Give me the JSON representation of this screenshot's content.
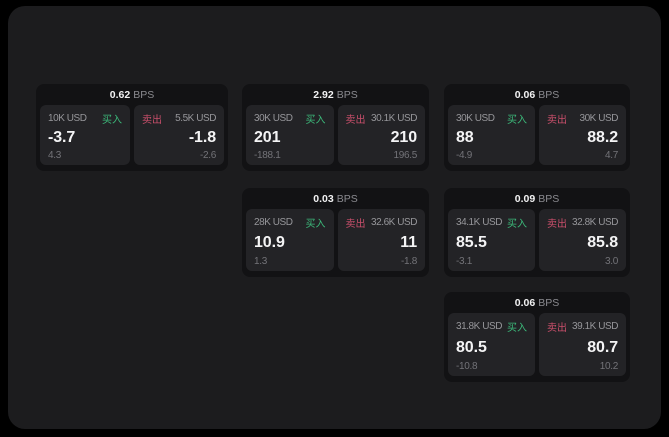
{
  "colors": {
    "buy_green": "#3cb97a",
    "sell_red": "#c94f6b"
  },
  "cards": [
    {
      "bps_value": "0.62",
      "bps_unit": "BPS",
      "buy": {
        "notional": "10K USD",
        "side_label": "买入",
        "price": "-3.7",
        "delta": "4.3"
      },
      "sell": {
        "side_label": "卖出",
        "notional": "5.5K USD",
        "price": "-1.8",
        "delta": "-2.6"
      }
    },
    {
      "bps_value": "2.92",
      "bps_unit": "BPS",
      "buy": {
        "notional": "30K USD",
        "side_label": "买入",
        "price": "201",
        "delta": "-188.1"
      },
      "sell": {
        "side_label": "卖出",
        "notional": "30.1K USD",
        "price": "210",
        "delta": "196.5"
      }
    },
    {
      "bps_value": "0.06",
      "bps_unit": "BPS",
      "buy": {
        "notional": "30K USD",
        "side_label": "买入",
        "price": "88",
        "delta": "-4.9"
      },
      "sell": {
        "side_label": "卖出",
        "notional": "30K USD",
        "price": "88.2",
        "delta": "4.7"
      }
    },
    {
      "bps_value": "0.03",
      "bps_unit": "BPS",
      "buy": {
        "notional": "28K USD",
        "side_label": "买入",
        "price": "10.9",
        "delta": "1.3"
      },
      "sell": {
        "side_label": "卖出",
        "notional": "32.6K USD",
        "price": "11",
        "delta": "-1.8"
      }
    },
    {
      "bps_value": "0.09",
      "bps_unit": "BPS",
      "buy": {
        "notional": "34.1K USD",
        "side_label": "买入",
        "price": "85.5",
        "delta": "-3.1"
      },
      "sell": {
        "side_label": "卖出",
        "notional": "32.8K USD",
        "price": "85.8",
        "delta": "3.0"
      }
    },
    {
      "bps_value": "0.06",
      "bps_unit": "BPS",
      "buy": {
        "notional": "31.8K USD",
        "side_label": "买入",
        "price": "80.5",
        "delta": "-10.8"
      },
      "sell": {
        "side_label": "卖出",
        "notional": "39.1K USD",
        "price": "80.7",
        "delta": "10.2"
      }
    }
  ]
}
